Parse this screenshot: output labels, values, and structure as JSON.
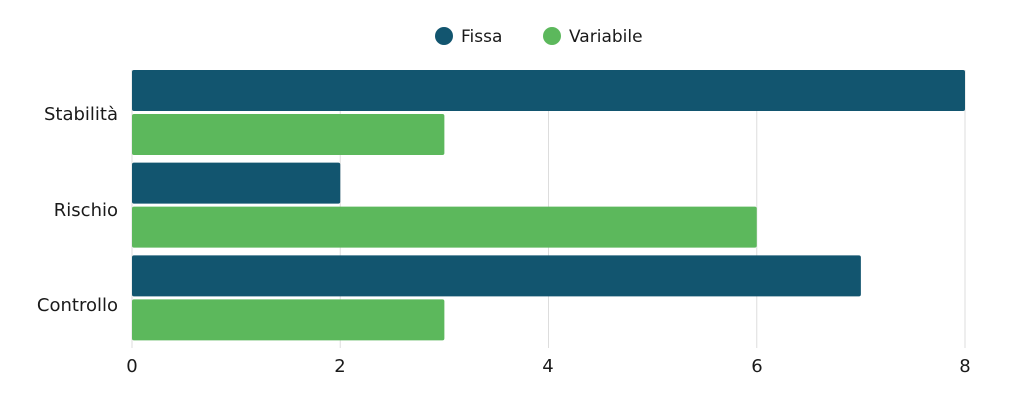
{
  "chart_data": {
    "type": "bar",
    "orientation": "horizontal",
    "categories": [
      "Stabilità",
      "Rischio",
      "Controllo"
    ],
    "series": [
      {
        "name": "Fissa",
        "values": [
          8,
          2,
          7
        ],
        "color": "#12556f"
      },
      {
        "name": "Variabile",
        "values": [
          3,
          6,
          3
        ],
        "color": "#5cb85c"
      }
    ],
    "x_ticks": [
      "0",
      "2",
      "4",
      "6",
      "8"
    ],
    "xlim": [
      0,
      8
    ],
    "grid": true,
    "legend": "top-center"
  }
}
